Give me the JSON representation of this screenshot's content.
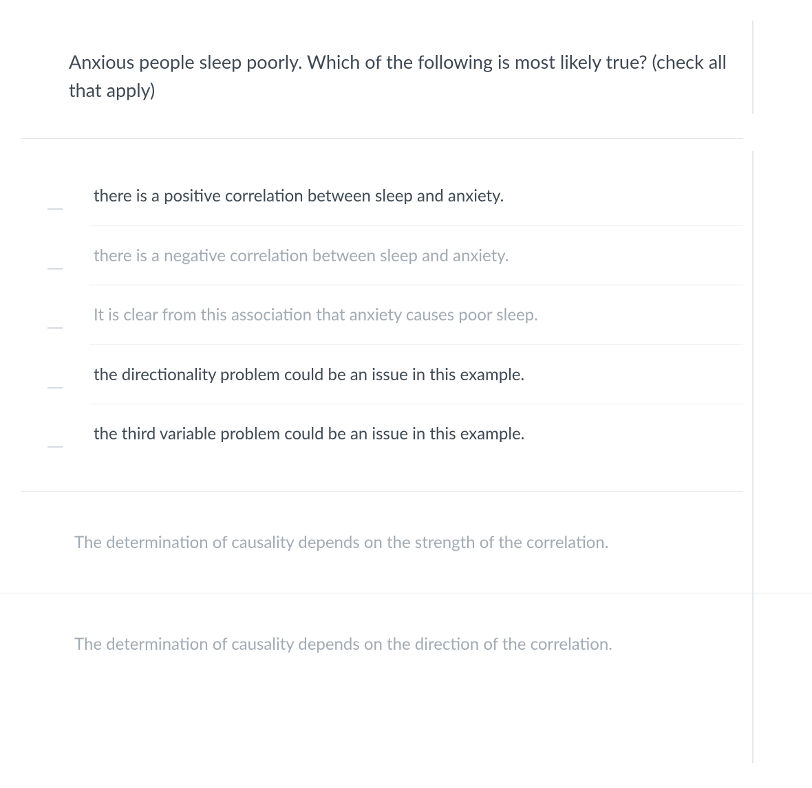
{
  "question": {
    "text": "Anxious people sleep poorly.  Which of the following is most likely true? (check all that apply)"
  },
  "options": [
    {
      "label": "there is a positive correlation between sleep and anxiety.",
      "faded": false,
      "tick": true
    },
    {
      "label": "there is a negative correlation between sleep and anxiety.",
      "faded": true,
      "tick": true
    },
    {
      "label": "It is clear from this association that anxiety causes poor sleep.",
      "faded": true,
      "tick": true
    },
    {
      "label": "the directionality problem could be an issue in this example.",
      "faded": false,
      "tick": true
    },
    {
      "label": "the third variable problem could be an issue in this example.",
      "faded": false,
      "tick": true
    }
  ],
  "extra_options": [
    {
      "label": "The determination of causality depends on the strength of the correlation."
    },
    {
      "label": "The determination of causality depends on the direction of the correlation."
    }
  ],
  "colors": {
    "text_primary": "#3e4954",
    "text_faded": "#a2abb4",
    "divider": "#e4e7ea",
    "tick": "#d7dce1",
    "background": "#ffffff"
  },
  "typography": {
    "question_fontsize": 27,
    "option_fontsize": 24,
    "line_height": 1.5
  }
}
